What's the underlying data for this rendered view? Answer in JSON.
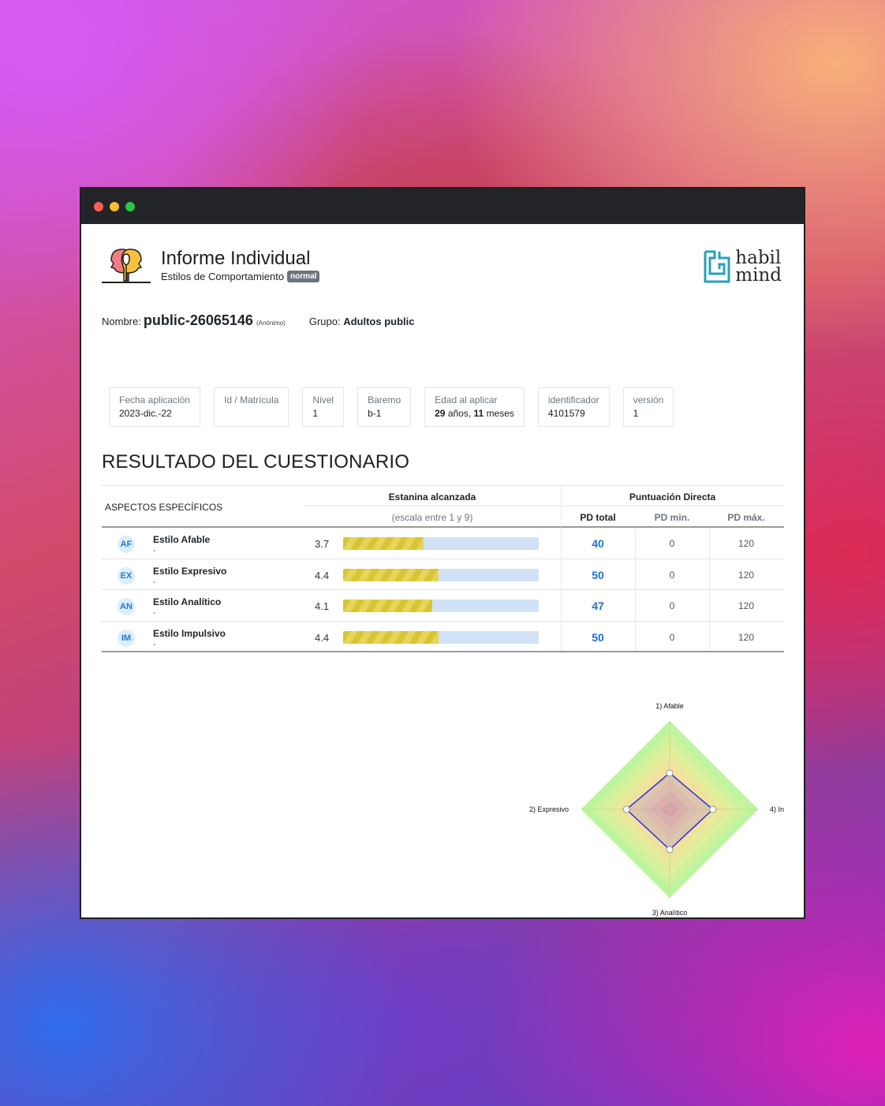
{
  "header": {
    "title": "Informe Individual",
    "subtitle": "Estilos de Comportamiento",
    "badge": "normal",
    "logo_line1": "habil",
    "logo_line2": "mind"
  },
  "person": {
    "name_label": "Nombre:",
    "name": "public-26065146",
    "anon": "(Anónimo)",
    "group_label": "Grupo:",
    "group": "Adultos public"
  },
  "cards": [
    {
      "label": "Fecha aplicación",
      "value": "2023-dic.-22"
    },
    {
      "label": "Id / Matrícula",
      "value": ""
    },
    {
      "label": "Nivel",
      "value": "1"
    },
    {
      "label": "Baremo",
      "value": "b-1"
    },
    {
      "label": "Edad al aplicar",
      "value_years": "29",
      "years_word": "años,",
      "value_months": "11",
      "months_word": "meses"
    },
    {
      "label": "identificador",
      "value": "4101579"
    },
    {
      "label": "versión",
      "value": "1"
    }
  ],
  "section_title": "RESULTADO DEL CUESTIONARIO",
  "table": {
    "col_aspectos": "ASPECTOS ESPECÍFICOS",
    "col_estanina": "Estanina alcanzada",
    "col_estanina_sub": "(escala entre 1 y 9)",
    "col_pd": "Puntuación Directa",
    "col_pd_total": "PD total",
    "col_pd_min": "PD min.",
    "col_pd_max": "PD máx.",
    "rows": [
      {
        "abbr": "AF",
        "name": "Estilo Afable",
        "desc": "-",
        "estanina": "3.7",
        "estanina_value": 3.7,
        "pd_total": "40",
        "pd_min": "0",
        "pd_max": "120"
      },
      {
        "abbr": "EX",
        "name": "Estilo Expresivo",
        "desc": "-",
        "estanina": "4.4",
        "estanina_value": 4.4,
        "pd_total": "50",
        "pd_min": "0",
        "pd_max": "120"
      },
      {
        "abbr": "AN",
        "name": "Estilo Analítico",
        "desc": "-",
        "estanina": "4.1",
        "estanina_value": 4.1,
        "pd_total": "47",
        "pd_min": "0",
        "pd_max": "120"
      },
      {
        "abbr": "IM",
        "name": "Estilo Impulsivo",
        "desc": "-",
        "estanina": "4.4",
        "estanina_value": 4.4,
        "pd_total": "50",
        "pd_min": "0",
        "pd_max": "120"
      }
    ]
  },
  "chart_data": {
    "type": "radar",
    "axes": [
      "1) Afable",
      "2) Expresivo",
      "3) Analítico",
      "4) In"
    ],
    "values": [
      3.7,
      4.4,
      4.1,
      4.4
    ],
    "range": [
      0,
      9
    ],
    "series_color": "#2c2ce0",
    "ring_colors": [
      "#f2a6a0",
      "#f6b8a6",
      "#f8caa6",
      "#f8d8a4",
      "#f5e09e",
      "#ecea9a",
      "#dff09a",
      "#cdf39c",
      "#bdf59e"
    ]
  }
}
